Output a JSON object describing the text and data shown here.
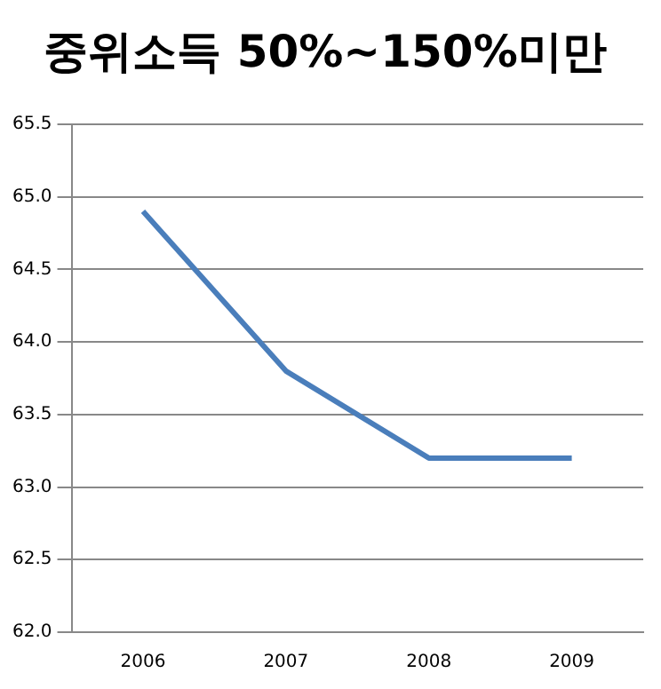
{
  "chart_data": {
    "type": "line",
    "title": "중위소득 50%~150%미만",
    "categories": [
      "2006",
      "2007",
      "2008",
      "2009"
    ],
    "series": [
      {
        "color": "#4a7ebb",
        "values": [
          64.9,
          63.8,
          63.2,
          63.2
        ]
      }
    ],
    "ylim": [
      62,
      65.5
    ],
    "yticks": [
      {
        "value": 62,
        "label": "62.0"
      },
      62.5,
      {
        "value": 63,
        "label": "63.0"
      },
      63.5,
      {
        "value": 64,
        "label": "64.0"
      },
      64.5,
      {
        "value": 65,
        "label": "65.0"
      },
      65.5
    ],
    "grid": "y",
    "legend": false,
    "marker": "none",
    "line_style": "solid"
  }
}
